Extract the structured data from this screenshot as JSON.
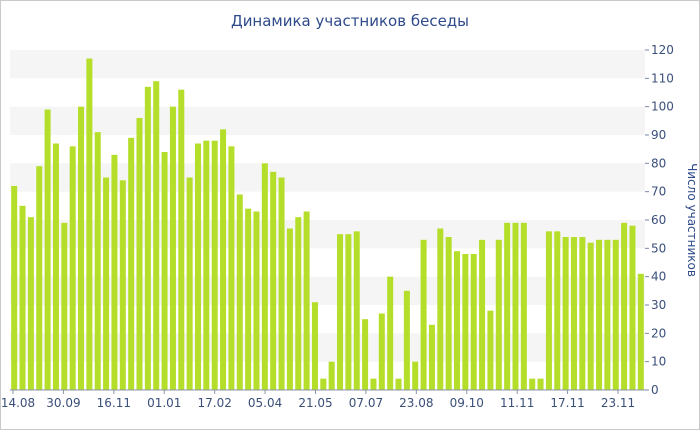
{
  "chart_data": {
    "type": "bar",
    "title": "Динамика участников беседы",
    "ylabel": "Число участников",
    "xlabel": "",
    "ylim": [
      0,
      120
    ],
    "y_ticks": [
      0,
      10,
      20,
      30,
      40,
      50,
      60,
      70,
      80,
      90,
      100,
      110,
      120
    ],
    "x_tick_labels": [
      "14.08",
      "30.09",
      "16.11",
      "01.01",
      "17.02",
      "05.04",
      "21.05",
      "07.07",
      "23.08",
      "09.10",
      "11.11",
      "17.11",
      "23.11"
    ],
    "grid": "horizontal bands",
    "bar_color": "#b5de2b",
    "band_color": "#f5f5f5",
    "values": [
      72,
      65,
      61,
      79,
      99,
      87,
      59,
      86,
      100,
      117,
      91,
      75,
      83,
      74,
      89,
      96,
      107,
      109,
      84,
      100,
      106,
      75,
      87,
      88,
      88,
      92,
      86,
      69,
      64,
      63,
      80,
      77,
      75,
      57,
      61,
      63,
      31,
      4,
      10,
      55,
      55,
      56,
      25,
      4,
      27,
      40,
      4,
      35,
      10,
      53,
      23,
      57,
      54,
      49,
      48,
      48,
      53,
      28,
      53,
      59,
      59,
      59,
      4,
      4,
      56,
      56,
      54,
      54,
      54,
      52,
      53,
      53,
      53,
      59,
      58,
      41
    ]
  }
}
